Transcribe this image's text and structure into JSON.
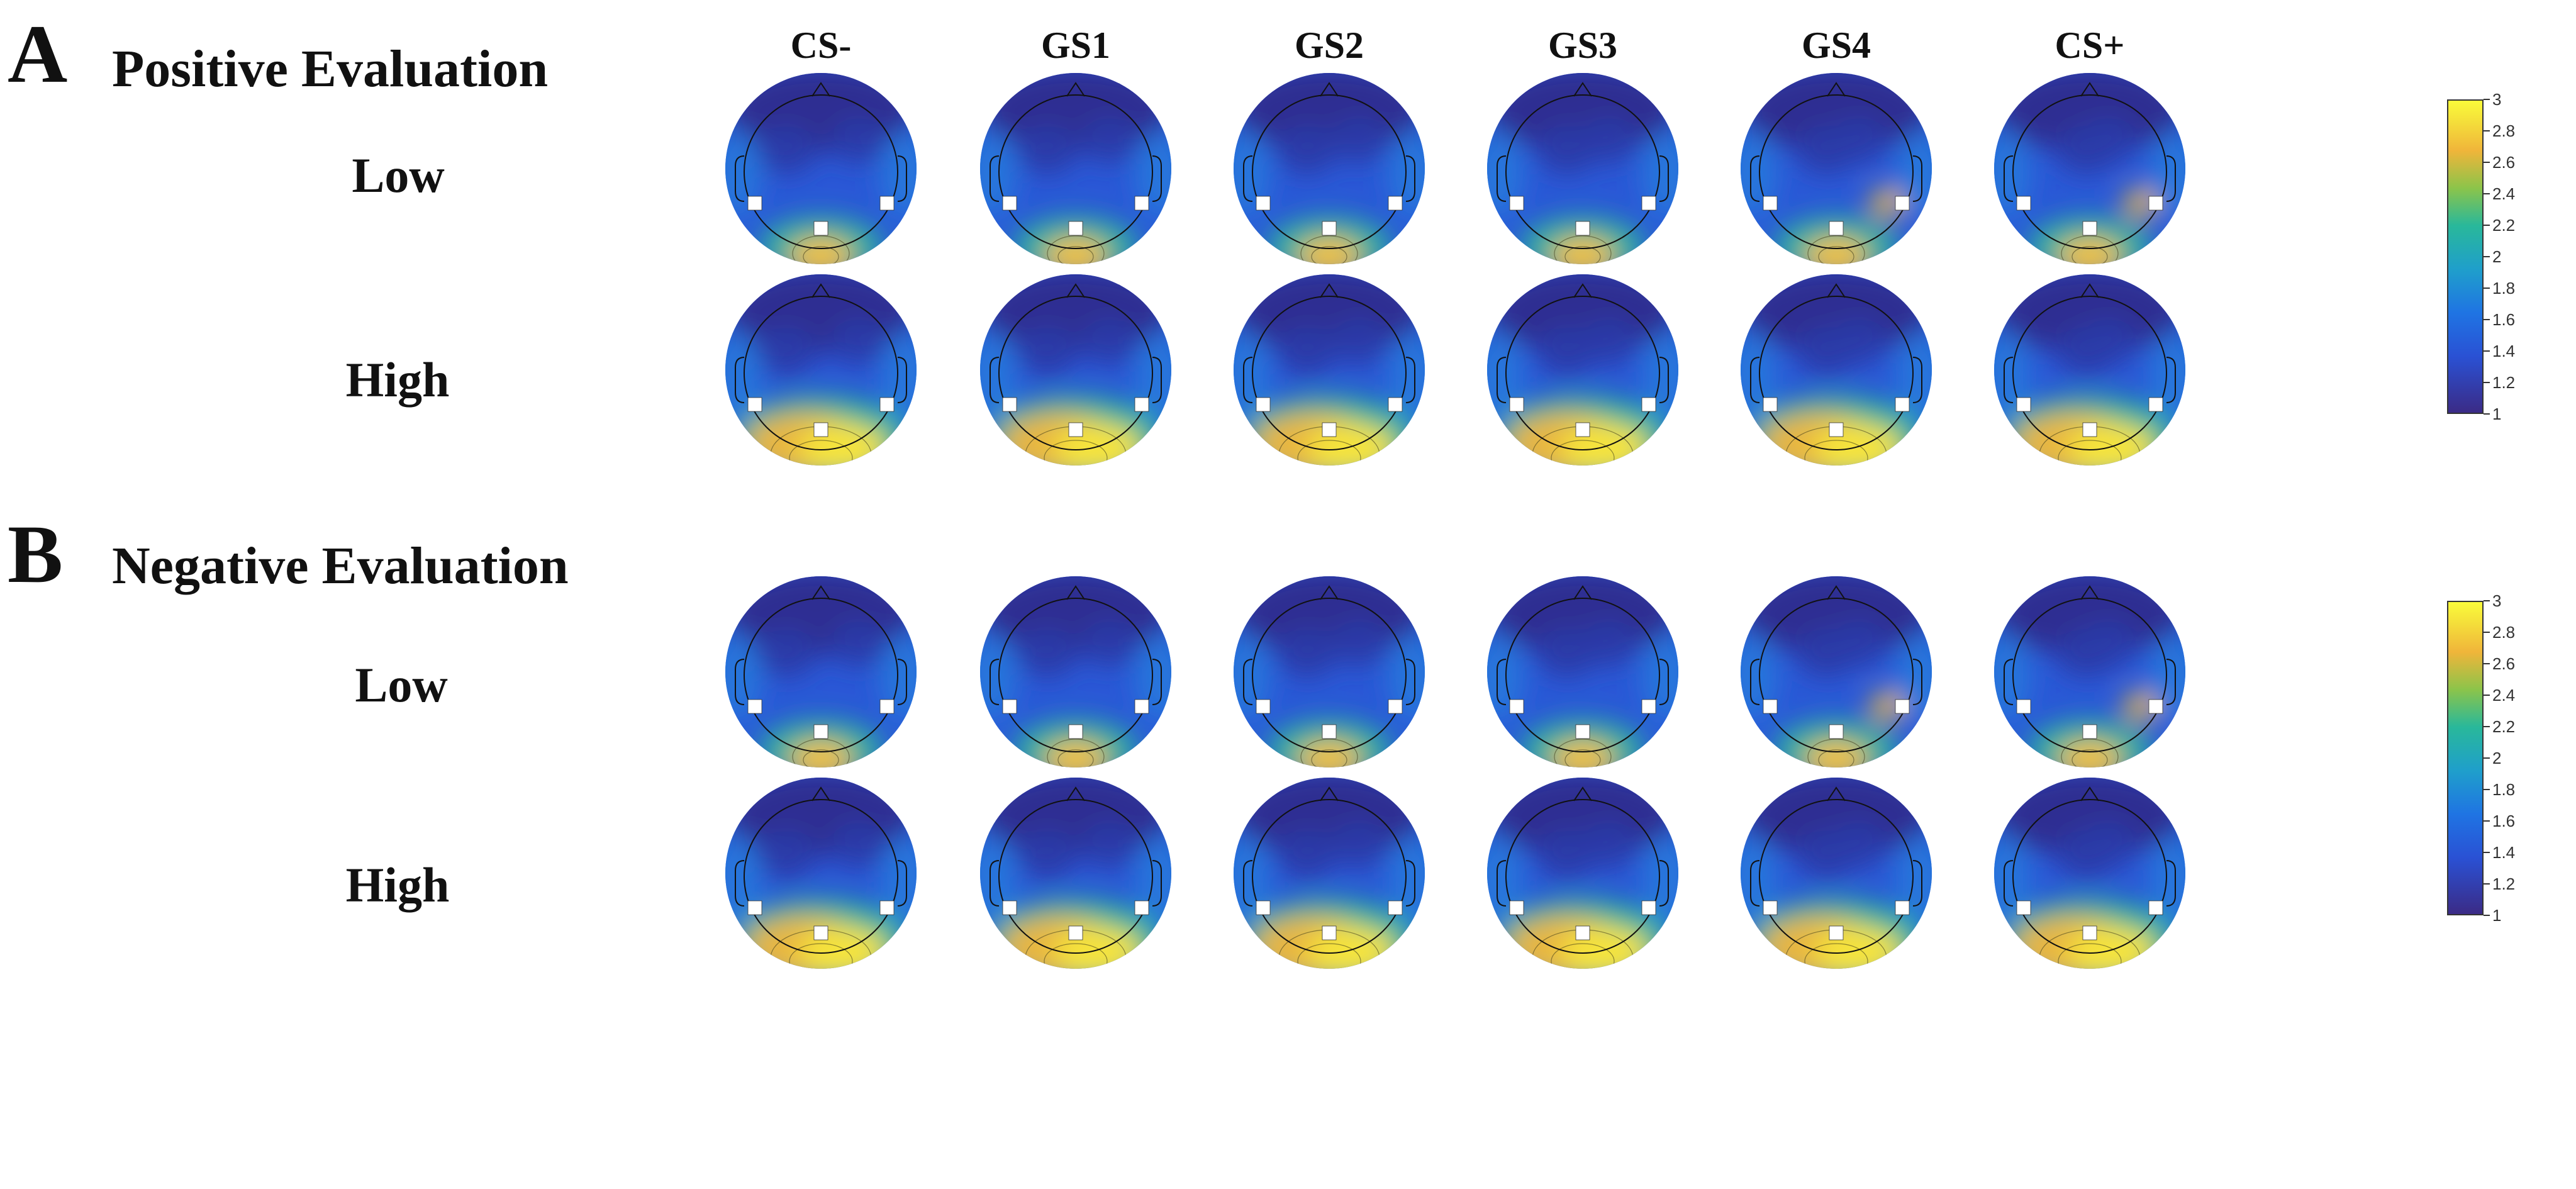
{
  "columns": [
    "CS-",
    "GS1",
    "GS2",
    "GS3",
    "GS4",
    "CS+"
  ],
  "panels": [
    {
      "letter": "A",
      "title": "Positive Evaluation",
      "rows": [
        "Low",
        "High"
      ]
    },
    {
      "letter": "B",
      "title": "Negative Evaluation",
      "rows": [
        "Low",
        "High"
      ]
    }
  ],
  "colorbar": {
    "ticks": [
      "3",
      "2.8",
      "2.6",
      "2.4",
      "2.2",
      "2",
      "1.8",
      "1.6",
      "1.4",
      "1.2",
      "1"
    ],
    "min": 1,
    "max": 3,
    "colors": [
      "#3b2b86",
      "#2a51d4",
      "#1f74e3",
      "#1f9fcb",
      "#29b89a",
      "#8cc44a",
      "#f0b53a",
      "#f5e23a",
      "#fafb3a"
    ]
  }
}
